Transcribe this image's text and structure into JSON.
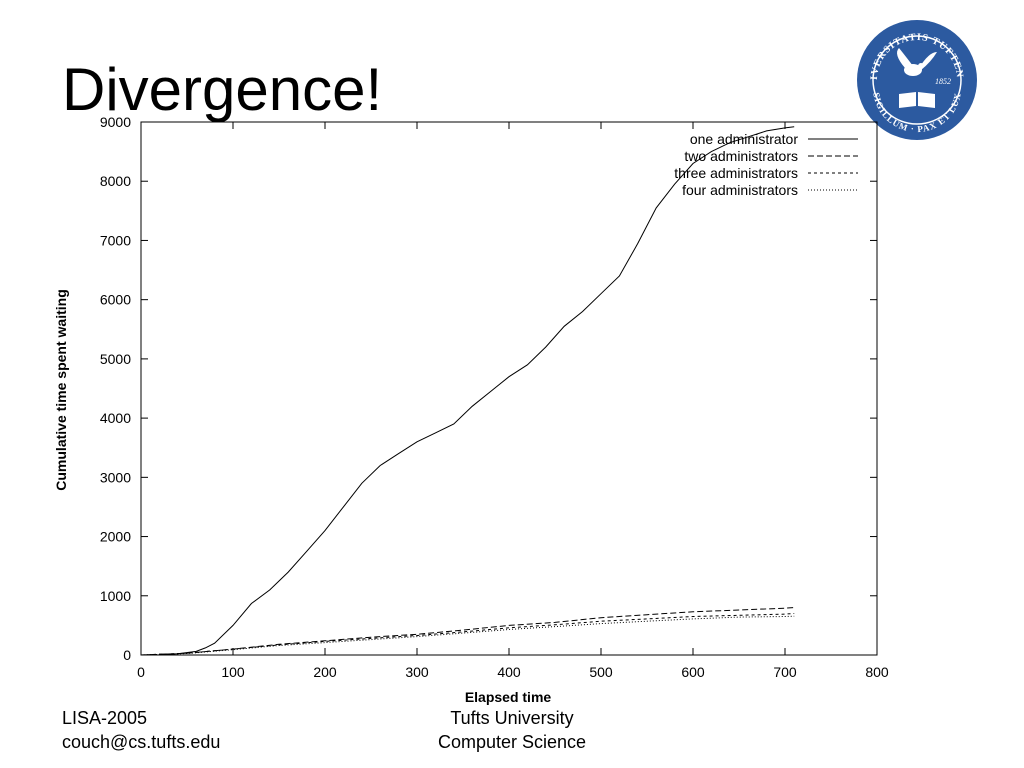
{
  "slide": {
    "title": "Divergence!",
    "footer_left": [
      "LISA-2005",
      "couch@cs.tufts.edu"
    ],
    "footer_center": [
      "Tufts University",
      "Computer Science"
    ],
    "seal": {
      "text_top": "UNIVERSITATIS TUFTENSIS",
      "text_bottom": "SIGILLUM · PAX ET LUX",
      "year": "1852",
      "color": "#2c5aa0"
    }
  },
  "chart_data": {
    "type": "line",
    "title": "",
    "xlabel": "Elapsed time",
    "ylabel": "Cumulative time spent waiting",
    "xlim": [
      0,
      800
    ],
    "ylim": [
      0,
      9000
    ],
    "xticks": [
      0,
      100,
      200,
      300,
      400,
      500,
      600,
      700,
      800
    ],
    "yticks": [
      0,
      1000,
      2000,
      3000,
      4000,
      5000,
      6000,
      7000,
      8000,
      9000
    ],
    "grid": false,
    "legend_position": "top-right",
    "series": [
      {
        "name": "one administrator",
        "dash": "solid",
        "x": [
          0,
          20,
          40,
          60,
          70,
          80,
          100,
          120,
          140,
          160,
          180,
          200,
          220,
          240,
          260,
          280,
          300,
          320,
          340,
          360,
          380,
          400,
          420,
          440,
          460,
          480,
          500,
          520,
          540,
          560,
          580,
          600,
          620,
          640,
          660,
          680,
          700,
          710
        ],
        "values": [
          0,
          5,
          20,
          60,
          120,
          200,
          500,
          870,
          1100,
          1400,
          1750,
          2100,
          2500,
          2900,
          3200,
          3400,
          3600,
          3750,
          3900,
          4200,
          4450,
          4700,
          4900,
          5200,
          5550,
          5800,
          6100,
          6400,
          6950,
          7550,
          7950,
          8300,
          8500,
          8650,
          8750,
          8850,
          8900,
          8920
        ]
      },
      {
        "name": "two administrators",
        "dash": "dashed",
        "x": [
          0,
          50,
          100,
          150,
          200,
          250,
          300,
          350,
          400,
          450,
          500,
          550,
          600,
          650,
          700,
          710
        ],
        "values": [
          0,
          30,
          100,
          180,
          240,
          300,
          350,
          420,
          500,
          550,
          630,
          680,
          730,
          760,
          790,
          800
        ]
      },
      {
        "name": "three administrators",
        "dash": "short-dashed",
        "x": [
          0,
          50,
          100,
          150,
          200,
          250,
          300,
          350,
          400,
          450,
          500,
          550,
          600,
          650,
          700,
          710
        ],
        "values": [
          0,
          30,
          100,
          170,
          230,
          280,
          330,
          390,
          460,
          510,
          570,
          610,
          650,
          670,
          690,
          700
        ]
      },
      {
        "name": "four administrators",
        "dash": "dotted",
        "x": [
          0,
          50,
          100,
          150,
          200,
          250,
          300,
          350,
          400,
          450,
          500,
          550,
          600,
          650,
          700,
          710
        ],
        "values": [
          0,
          25,
          90,
          160,
          210,
          260,
          310,
          370,
          430,
          480,
          530,
          570,
          610,
          640,
          650,
          655
        ]
      }
    ]
  }
}
